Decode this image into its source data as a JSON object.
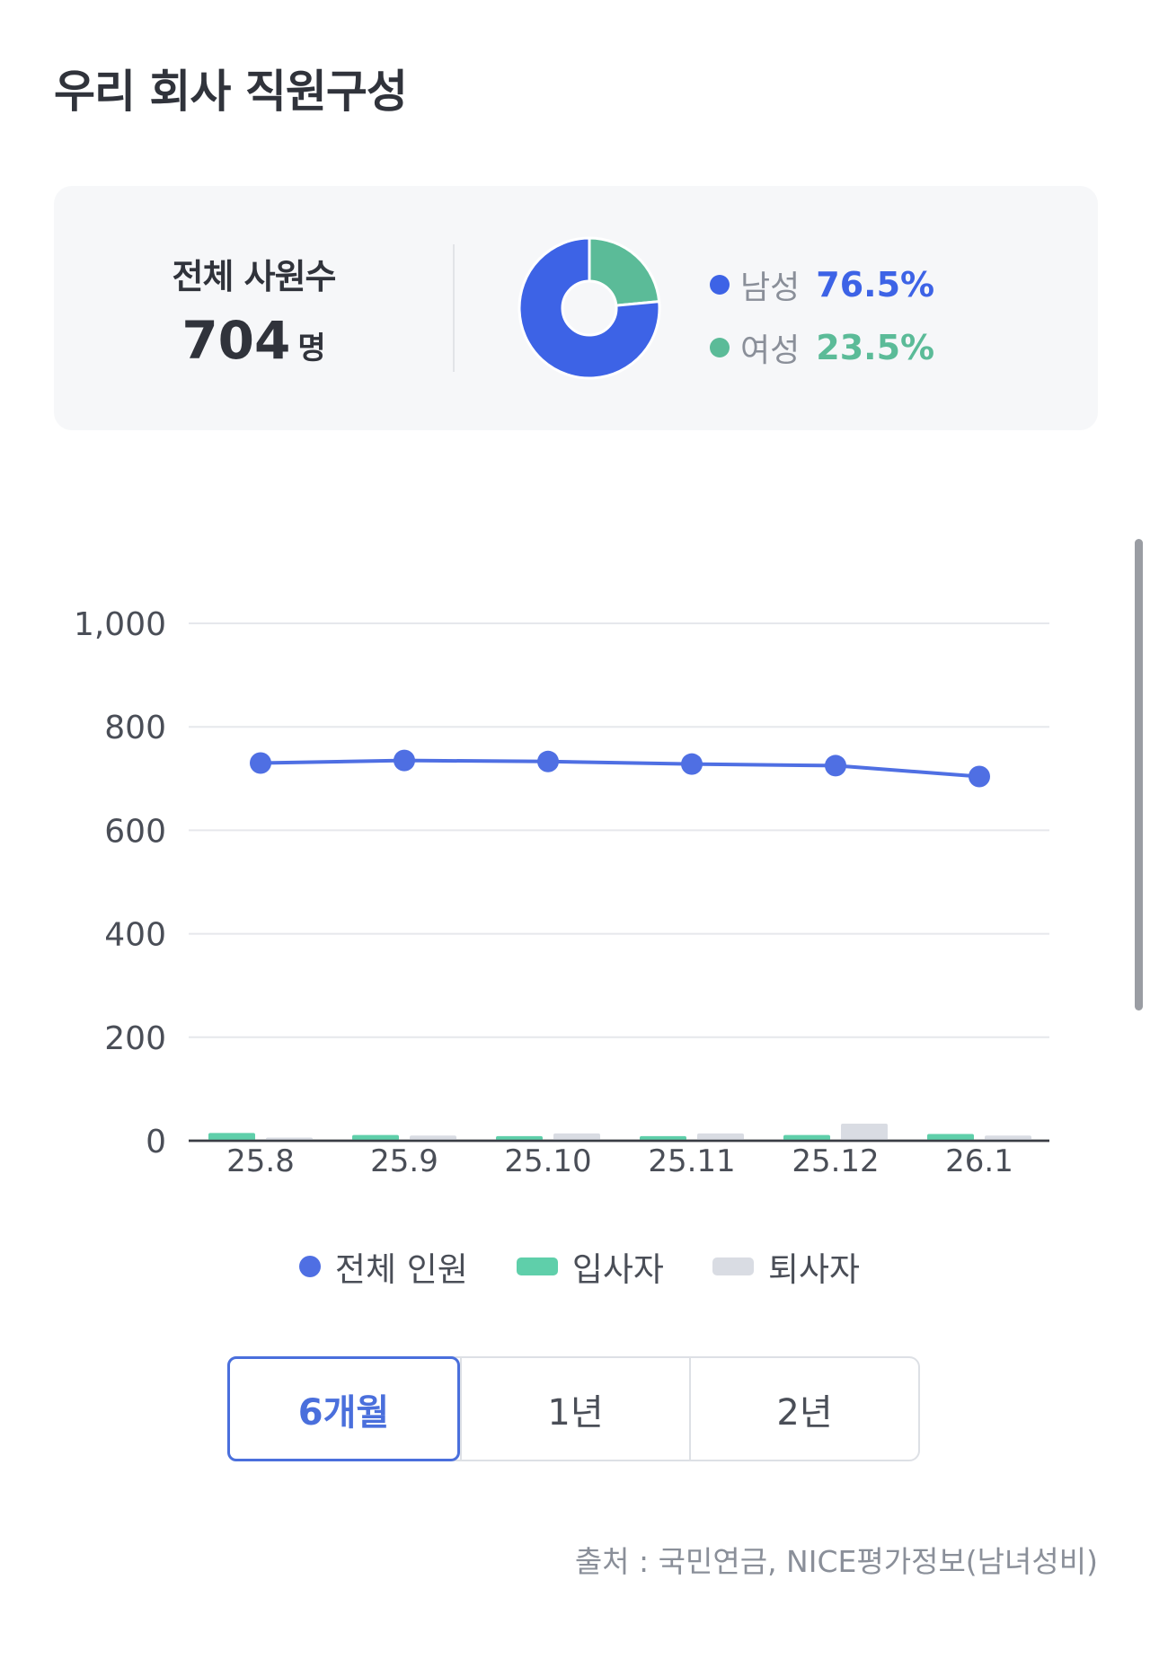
{
  "page": {
    "title": "우리 회사 직원구성",
    "source": "출처 : 국민연금, NICE평가정보(남녀성비)"
  },
  "summary": {
    "total_label": "전체 사원수",
    "total_value": "704",
    "total_unit": "명",
    "gender": [
      {
        "label": "남성",
        "value": "76.5%",
        "share": 0.765,
        "color": "#3d63e6"
      },
      {
        "label": "여성",
        "value": "23.5%",
        "share": 0.235,
        "color": "#5bbb98"
      }
    ]
  },
  "chart_data": {
    "type": "line",
    "categories": [
      "25.8",
      "25.9",
      "25.10",
      "25.11",
      "25.12",
      "26.1"
    ],
    "series": [
      {
        "name": "전체 인원",
        "type": "line",
        "color": "#4f6fe3",
        "values": [
          730,
          735,
          733,
          728,
          725,
          704
        ]
      },
      {
        "name": "입사자",
        "type": "bar",
        "color": "#5fcfaa",
        "values": [
          15,
          11,
          9,
          9,
          11,
          13
        ]
      },
      {
        "name": "퇴사자",
        "type": "bar",
        "color": "#d9dce3",
        "values": [
          6,
          10,
          14,
          14,
          33,
          10
        ]
      }
    ],
    "yticks": [
      "0",
      "200",
      "400",
      "600",
      "800",
      "1,000"
    ],
    "ylim": [
      0,
      1000
    ],
    "grid": true,
    "legend_position": "bottom"
  },
  "period_tabs": {
    "options": [
      "6개월",
      "1년",
      "2년"
    ],
    "selected": "6개월"
  },
  "colors": {
    "accent": "#4a6fdc",
    "line": "#4f6fe3",
    "hire": "#5fcfaa",
    "leave": "#d9dce3"
  }
}
